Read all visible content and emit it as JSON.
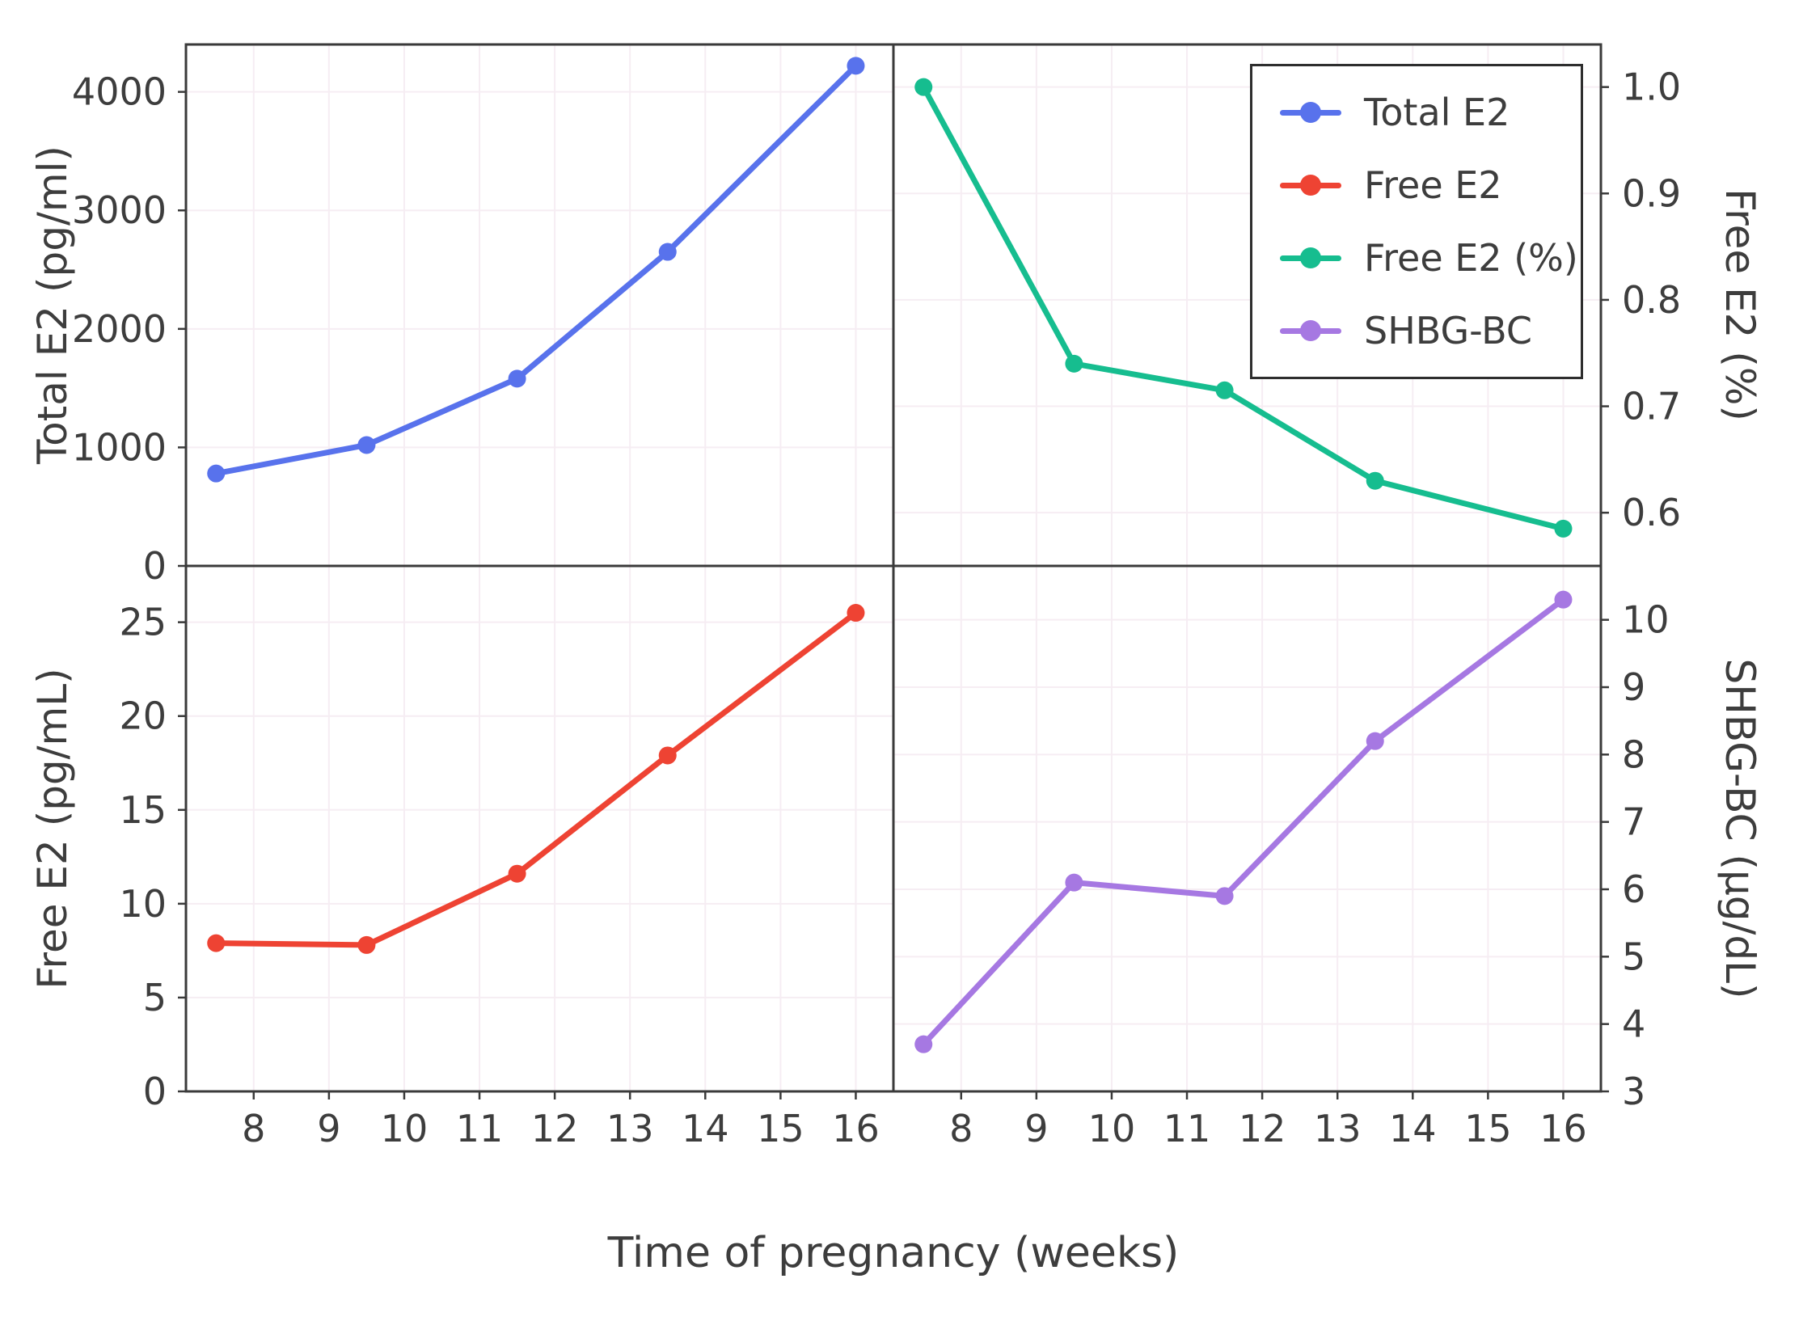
{
  "figure": {
    "background": "#ffffff",
    "text_color": "#3d3d3d",
    "border_color": "#3a3a3a",
    "grid_color": "#f6edf3"
  },
  "xaxis": {
    "label": "Time of pregnancy (weeks)",
    "ticks": [
      8,
      9,
      10,
      11,
      12,
      13,
      14,
      15,
      16
    ],
    "tick_labels": [
      "8",
      "9",
      "10",
      "11",
      "12",
      "13",
      "14",
      "15",
      "16"
    ],
    "xlim": [
      7.1,
      16.5
    ]
  },
  "chart_data": [
    {
      "type": "line",
      "panel": "top-left",
      "series_name": "Total E2",
      "color": "#5872ec",
      "x": [
        7.5,
        9.5,
        11.5,
        13.5,
        16
      ],
      "y": [
        780,
        1020,
        1580,
        2650,
        4220
      ],
      "ylabel": "Total E2 (pg/ml)",
      "yticks": [
        0,
        1000,
        2000,
        3000,
        4000
      ],
      "ytick_labels": [
        "0",
        "1000",
        "2000",
        "3000",
        "4000"
      ],
      "ylim": [
        0,
        4400
      ],
      "yaxis_side": "left",
      "marker": "circle",
      "grid": true
    },
    {
      "type": "line",
      "panel": "top-right",
      "series_name": "Free E2 (%)",
      "color": "#16bd8f",
      "x": [
        7.5,
        9.5,
        11.5,
        13.5,
        16
      ],
      "y": [
        1.0,
        0.74,
        0.715,
        0.63,
        0.585
      ],
      "ylabel": "Free E2 (%)",
      "yticks": [
        0.6,
        0.7,
        0.8,
        0.9,
        1.0
      ],
      "ytick_labels": [
        "0.6",
        "0.7",
        "0.8",
        "0.9",
        "1.0"
      ],
      "ylim": [
        0.55,
        1.04
      ],
      "yaxis_side": "right",
      "marker": "circle",
      "grid": true
    },
    {
      "type": "line",
      "panel": "bottom-left",
      "series_name": "Free E2",
      "color": "#ee4333",
      "x": [
        7.5,
        9.5,
        11.5,
        13.5,
        16
      ],
      "y": [
        7.9,
        7.8,
        11.6,
        17.9,
        25.5
      ],
      "ylabel": "Free E2 (pg/mL)",
      "yticks": [
        0,
        5,
        10,
        15,
        20,
        25
      ],
      "ytick_labels": [
        "0",
        "5",
        "10",
        "15",
        "20",
        "25"
      ],
      "ylim": [
        0,
        28
      ],
      "yaxis_side": "left",
      "marker": "circle",
      "grid": true
    },
    {
      "type": "line",
      "panel": "bottom-right",
      "series_name": "SHBG-BC",
      "color": "#a678e2",
      "x": [
        7.5,
        9.5,
        11.5,
        13.5,
        16
      ],
      "y": [
        3.7,
        6.1,
        5.9,
        8.2,
        10.3
      ],
      "ylabel": "SHBG-BC (µg/dL)",
      "yticks": [
        3,
        4,
        5,
        6,
        7,
        8,
        9,
        10
      ],
      "ytick_labels": [
        "3",
        "4",
        "5",
        "6",
        "7",
        "8",
        "9",
        "10"
      ],
      "ylim": [
        3,
        10.8
      ],
      "yaxis_side": "right",
      "marker": "circle",
      "grid": true
    }
  ],
  "legend": {
    "position": "top-right",
    "entries": [
      {
        "label": "Total E2",
        "color": "#5872ec"
      },
      {
        "label": "Free E2",
        "color": "#ee4333"
      },
      {
        "label": "Free E2 (%)",
        "color": "#16bd8f"
      },
      {
        "label": "SHBG-BC",
        "color": "#a678e2"
      }
    ]
  }
}
